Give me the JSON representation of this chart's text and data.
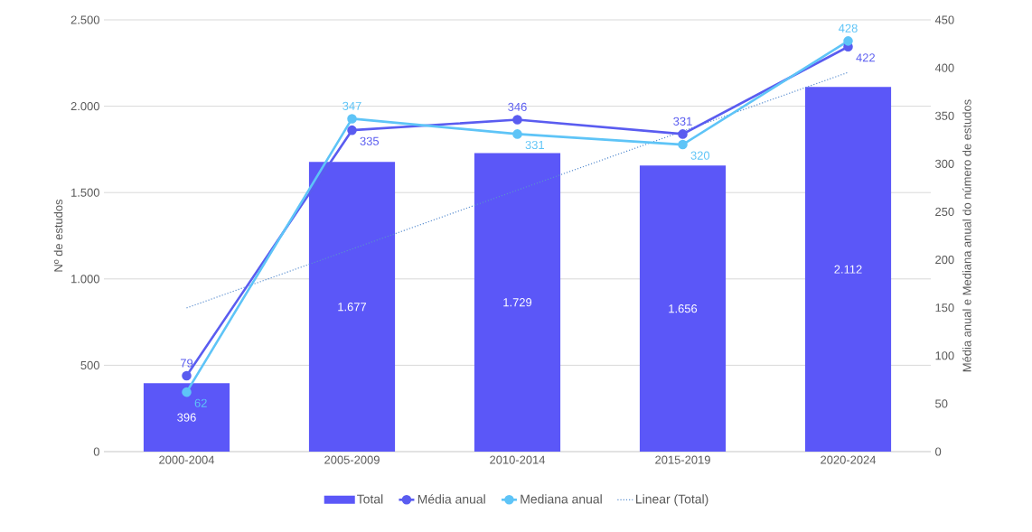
{
  "chart_data": {
    "type": "bar",
    "categories": [
      "2000-2004",
      "2005-2009",
      "2010-2014",
      "2015-2019",
      "2020-2024"
    ],
    "ylabel": "Nº de estudos",
    "y2label": "Média anual e Mediana anual do número de estudos",
    "ylim": [
      0,
      2500
    ],
    "yticks": [
      0,
      500,
      {
        "value": 1000,
        "label": "1.000"
      },
      {
        "value": 1500,
        "label": "1.500"
      },
      {
        "value": 2000,
        "label": "2.000"
      },
      {
        "value": 2500,
        "label": "2.500"
      }
    ],
    "y2lim": [
      0,
      450
    ],
    "y2ticks": [
      0,
      50,
      100,
      150,
      200,
      250,
      300,
      350,
      400,
      450
    ],
    "grid": "y",
    "legend": "bottom",
    "marker": "circle",
    "series": [
      {
        "name": "Total",
        "color": "#5b57f8",
        "values": [
          396,
          1677,
          1729,
          1656,
          2112
        ],
        "value_labels": [
          "396",
          "1.677",
          "1.729",
          "1.656",
          "2.112"
        ]
      },
      {
        "name": "Média anual",
        "type": "line",
        "axis": "y2",
        "color": "#5a5cf0",
        "values": [
          79,
          335,
          346,
          331,
          422
        ],
        "value_labels": [
          "79",
          "335",
          "346",
          "331",
          "422"
        ]
      },
      {
        "name": "Mediana anual",
        "type": "line",
        "axis": "y2",
        "color": "#5ec4f7",
        "values": [
          62,
          347,
          331,
          320,
          428
        ],
        "value_labels": [
          "62",
          "347",
          "331",
          "320",
          "428"
        ]
      },
      {
        "name": "Linear (Total)",
        "type": "line",
        "color": "#5b8fd0",
        "line_style": "dotted",
        "marker": "none",
        "values": [
          832,
          1173,
          1514,
          1855,
          2196
        ]
      }
    ]
  }
}
